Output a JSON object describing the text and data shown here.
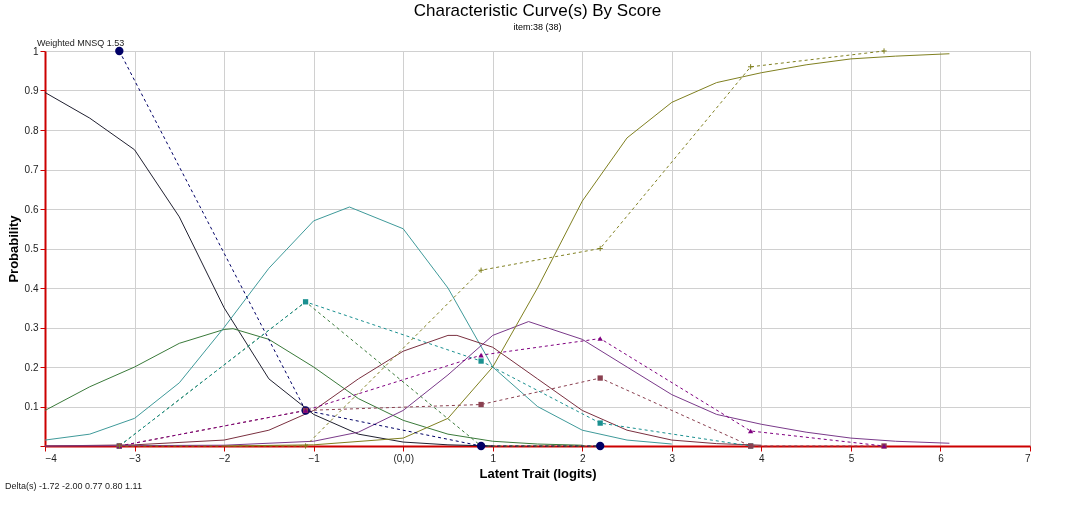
{
  "chart_data": {
    "type": "line",
    "title": "Characteristic Curve(s) By Score",
    "subtitle": "item:38 (38)",
    "xlabel": "Latent Trait (logits)",
    "ylabel": "Probability",
    "xlim": [
      -4,
      7
    ],
    "xticks": [
      -4,
      -3,
      -2,
      -1,
      {
        "value": 0,
        "label": "(0,0)"
      },
      1,
      2,
      3,
      4,
      5,
      6,
      7
    ],
    "ylim": [
      0,
      1
    ],
    "yticks": [
      {
        "value": 0,
        "label": null
      },
      0.1,
      0.2,
      0.3,
      0.4,
      0.5,
      0.6,
      0.7,
      0.8,
      0.9,
      1
    ],
    "grid": true,
    "annotations": [
      "Weighted MNSQ   1.53",
      "Delta(s)   -1.72 -2.00  0.77  0.80  1.11"
    ],
    "series": [
      {
        "color": "#202030",
        "line_style": "solid",
        "marker": "none",
        "x": [
          -4,
          -3.5,
          -3,
          -2.5,
          -2,
          -1.5,
          -1,
          -0.5,
          0,
          0.5,
          1
        ],
        "values": [
          0.895,
          0.83,
          0.75,
          0.58,
          0.35,
          0.17,
          0.08,
          0.03,
          0.01,
          0.003,
          0
        ]
      },
      {
        "color": "#3a7a3a",
        "line_style": "solid",
        "marker": "none",
        "x": [
          -4,
          -3.5,
          -3,
          -2.5,
          -2,
          -1.9,
          -1.5,
          -1,
          -0.5,
          0,
          0.5,
          1,
          1.5,
          2
        ],
        "values": [
          0.09,
          0.15,
          0.2,
          0.26,
          0.295,
          0.297,
          0.27,
          0.2,
          0.12,
          0.065,
          0.03,
          0.012,
          0.005,
          0.002
        ]
      },
      {
        "color": "#3f9a9a",
        "line_style": "solid",
        "marker": "none",
        "x": [
          -4,
          -3.5,
          -3,
          -2.5,
          -2,
          -1.5,
          -1,
          -0.6,
          0,
          0.5,
          1,
          1.5,
          2,
          2.5,
          3
        ],
        "values": [
          0.015,
          0.03,
          0.07,
          0.16,
          0.3,
          0.45,
          0.57,
          0.605,
          0.55,
          0.4,
          0.2,
          0.1,
          0.04,
          0.015,
          0.005
        ]
      },
      {
        "color": "#7a3040",
        "line_style": "solid",
        "marker": "none",
        "x": [
          -4,
          -3,
          -2,
          -1.5,
          -1,
          -0.5,
          0,
          0.5,
          0.6,
          1,
          1.5,
          2,
          2.5,
          3,
          3.5,
          4
        ],
        "values": [
          0,
          0.003,
          0.015,
          0.04,
          0.09,
          0.17,
          0.24,
          0.28,
          0.28,
          0.25,
          0.17,
          0.09,
          0.04,
          0.015,
          0.006,
          0.002
        ]
      },
      {
        "color": "#7a3a8a",
        "line_style": "solid",
        "marker": "none",
        "x": [
          -4,
          -2,
          -1,
          -0.5,
          0,
          0.5,
          1,
          1.4,
          2,
          2.5,
          3,
          3.5,
          4,
          4.5,
          5,
          5.5,
          6.1
        ],
        "values": [
          0,
          0.002,
          0.012,
          0.035,
          0.09,
          0.18,
          0.28,
          0.315,
          0.27,
          0.2,
          0.13,
          0.08,
          0.055,
          0.035,
          0.02,
          0.012,
          0.007
        ]
      },
      {
        "color": "#808020",
        "line_style": "solid",
        "marker": "none",
        "x": [
          -2,
          -1,
          0,
          0.5,
          1,
          1.5,
          2,
          2.5,
          3,
          3.5,
          4,
          4.5,
          5,
          5.5,
          6.1
        ],
        "values": [
          0,
          0.003,
          0.02,
          0.07,
          0.2,
          0.4,
          0.62,
          0.78,
          0.87,
          0.92,
          0.945,
          0.965,
          0.98,
          0.987,
          0.993
        ]
      },
      {
        "color": "#000066",
        "line_style": "dashed",
        "marker": "circle",
        "x": [
          -3.17,
          -1.09,
          0.87,
          2.2
        ],
        "values": [
          1.0,
          0.09,
          0,
          0
        ]
      },
      {
        "color": "#3a7a3a",
        "line_style": "dashed",
        "marker": "none",
        "x": [
          -3.17,
          -1.09,
          0.87,
          2.2
        ],
        "values": [
          0,
          0.365,
          0,
          0
        ]
      },
      {
        "color": "#1a9090",
        "line_style": "dashed",
        "marker": "square",
        "x": [
          -3.17,
          -1.09,
          0.87,
          2.2,
          3.88
        ],
        "values": [
          0,
          0.365,
          0.215,
          0.058,
          0
        ]
      },
      {
        "color": "#8a4050",
        "line_style": "dashed",
        "marker": "square",
        "x": [
          -3.17,
          -1.09,
          0.87,
          2.2,
          3.88,
          5.37
        ],
        "values": [
          0,
          0.09,
          0.105,
          0.172,
          0,
          0
        ]
      },
      {
        "color": "#800080",
        "line_style": "dashed",
        "marker": "triangle",
        "x": [
          -3.17,
          -1.09,
          0.87,
          2.2,
          3.88,
          5.37
        ],
        "values": [
          0,
          0.09,
          0.23,
          0.272,
          0.038,
          0
        ]
      },
      {
        "color": "#808020",
        "line_style": "dashed",
        "marker": "cross",
        "x": [
          -3.17,
          -1.09,
          0.87,
          2.2,
          3.88,
          5.37
        ],
        "values": [
          0,
          0,
          0.445,
          0.5,
          0.96,
          1.0
        ]
      }
    ]
  }
}
